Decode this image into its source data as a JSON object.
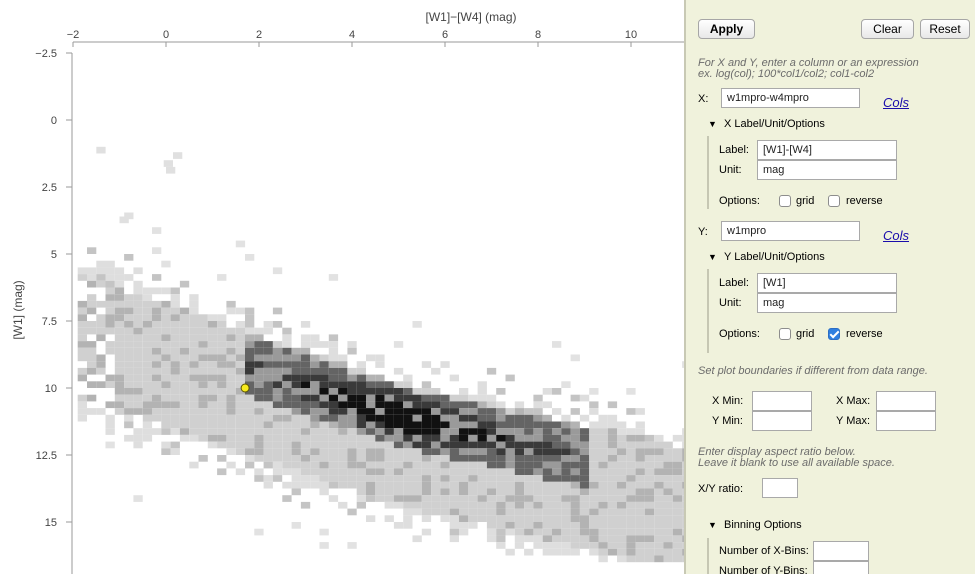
{
  "chart_data": {
    "type": "heatmap",
    "xlabel": "[W1]−[W4] (mag)",
    "ylabel": "[W1] (mag)",
    "x_ticks": [
      -2,
      0,
      2,
      4,
      6,
      8,
      10
    ],
    "y_ticks": [
      -2.5,
      0,
      2.5,
      5,
      7.5,
      10,
      12.5,
      15
    ],
    "xlim": [
      -2.15,
      11.1
    ],
    "ylim_reversed": [
      -2.5,
      16.3
    ],
    "y_reversed": true,
    "bin_dx": 0.2,
    "bin_dy": 0.25,
    "density_bands": [
      {
        "x0": -1.9,
        "x1": 13.0,
        "center_y": [
          8.0,
          12.0,
          15.2
        ],
        "pivot_x": [
          -1.9,
          5.0,
          13.0
        ],
        "thin_halfwidth": 3.6,
        "mid_halfwidth": 2.3
      },
      {
        "x0": 1.5,
        "x1": 9.0,
        "center_y": [
          9.0,
          11.0,
          12.5
        ],
        "pivot_x": [
          1.5,
          5.0,
          9.0
        ],
        "dark_halfwidth": 1.1
      }
    ],
    "highlighted_point": {
      "x": 1.7,
      "y": 10.0
    },
    "grid": false
  },
  "panel": {
    "apply_label": "Apply",
    "clear_label": "Clear",
    "reset_label": "Reset",
    "hint_line1": "For X and Y, enter a column or an expression",
    "hint_line2": "ex. log(col); 100*col1/col2; col1-col2",
    "x_label": "X:",
    "x_value": "w1mpro-w4mpro",
    "cols_label": "Cols",
    "x_options_title": "X Label/Unit/Options",
    "x_opts": {
      "label_caption": "Label:",
      "label_value": "[W1]-[W4]",
      "unit_caption": "Unit:",
      "unit_value": "mag",
      "options_caption": "Options:",
      "grid_label": "grid",
      "reverse_label": "reverse",
      "grid_checked": false,
      "reverse_checked": false
    },
    "y_label": "Y:",
    "y_value": "w1mpro",
    "y_options_title": "Y Label/Unit/Options",
    "y_opts": {
      "label_caption": "Label:",
      "label_value": "[W1]",
      "unit_caption": "Unit:",
      "unit_value": "mag",
      "options_caption": "Options:",
      "grid_label": "grid",
      "reverse_label": "reverse",
      "grid_checked": false,
      "reverse_checked": true
    },
    "bounds_hint": "Set plot boundaries if different from data range.",
    "xmin_label": "X Min:",
    "xmax_label": "X Max:",
    "ymin_label": "Y Min:",
    "ymax_label": "Y Max:",
    "aspect_hint1": "Enter display aspect ratio below.",
    "aspect_hint2": "Leave it blank to use all available space.",
    "xy_ratio_label": "X/Y ratio:",
    "binning_title": "Binning Options",
    "xbins_label": "Number of X-Bins:",
    "ybins_label": "Number of Y-Bins:"
  }
}
